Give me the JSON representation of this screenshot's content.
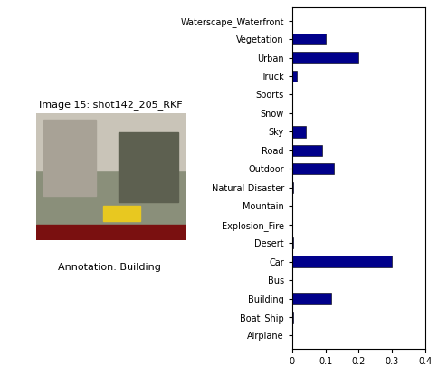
{
  "image": {
    "title": "Image 15: shot142_205_RKF",
    "annotation": "Annotation: Building"
  },
  "chart_data": {
    "type": "bar",
    "orientation": "horizontal",
    "categories": [
      "Airplane",
      "Boat_Ship",
      "Building",
      "Bus",
      "Car",
      "Desert",
      "Explosion_Fire",
      "Mountain",
      "Natural-Disaster",
      "Outdoor",
      "Road",
      "Sky",
      "Snow",
      "Sports",
      "Truck",
      "Urban",
      "Vegetation",
      "Waterscape_Waterfront"
    ],
    "values": [
      0,
      0.003,
      0.118,
      0,
      0.3,
      0.002,
      0,
      0,
      0.002,
      0.125,
      0.09,
      0.04,
      0,
      0,
      0.015,
      0.2,
      0.1,
      0
    ],
    "color": "#00008b",
    "xlim": [
      0,
      0.4
    ],
    "xticks": [
      0,
      0.1,
      0.2,
      0.3,
      0.4
    ],
    "grid": false
  }
}
